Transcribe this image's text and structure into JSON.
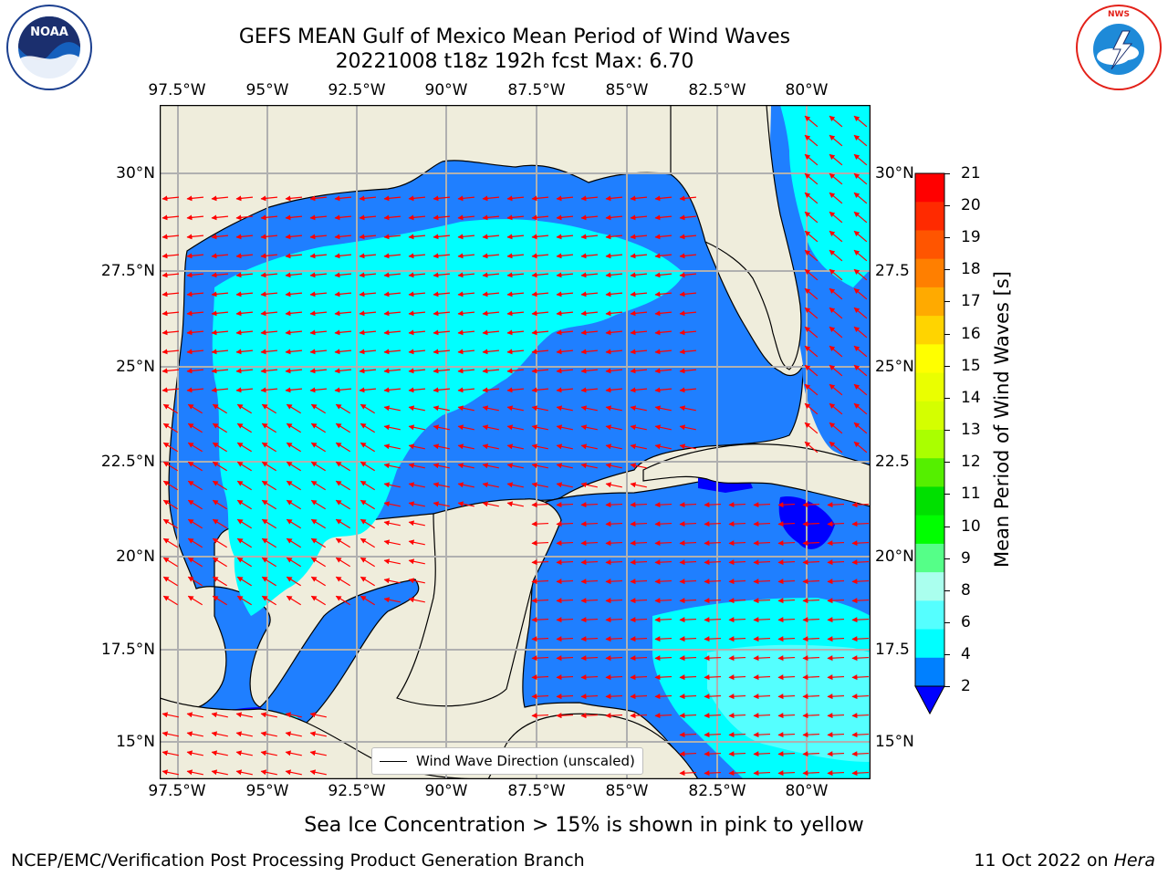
{
  "header": {
    "title_line1": "GEFS MEAN Gulf of Mexico Mean Period of Wind Waves",
    "title_line2": "20221008 t18z 192h fcst   Max: 6.70"
  },
  "logos": {
    "left_text": "NOAA",
    "left_ring_text": "NATIONAL OCEANIC AND ATMOSPHERIC ADMINISTRATION · U.S. DEPARTMENT OF COMMERCE",
    "right_ring_text": "NATIONAL WEATHER SERVICE"
  },
  "map": {
    "lon_ticks": [
      "97.5°W",
      "95°W",
      "92.5°W",
      "90°W",
      "87.5°W",
      "85°W",
      "82.5°W",
      "80°W"
    ],
    "lat_ticks_left": [
      "30°N",
      "27.5°N",
      "25°N",
      "22.5°N",
      "20°N",
      "17.5°N",
      "15°N"
    ],
    "lat_ticks_right": [
      "30°N",
      "27.5",
      "25°N",
      "22.5",
      "20°N",
      "17.5",
      "15°N"
    ],
    "legend_label": "Wind Wave Direction (unscaled)",
    "land_color": "#efeddc",
    "arrow_color": "#ff0000"
  },
  "colorbar": {
    "label": "Mean Period of Wind Waves [s]",
    "ticks": [
      "21",
      "20",
      "19",
      "18",
      "17",
      "16",
      "15",
      "14",
      "13",
      "12",
      "11",
      "10",
      "9",
      "8",
      "6",
      "4",
      "2"
    ],
    "colors_top_to_bottom": [
      "#ff0000",
      "#ff2a00",
      "#ff5500",
      "#ff7f00",
      "#ffaa00",
      "#ffd400",
      "#ffff00",
      "#eaff00",
      "#d4ff00",
      "#aaff00",
      "#55ef00",
      "#00e000",
      "#00ff00",
      "#55ff88",
      "#aaffee",
      "#55ffff",
      "#00ffff",
      "#0080ff",
      "#0000ff"
    ]
  },
  "footer": {
    "sea_ice_note": "Sea Ice Concentration > 15% is shown in pink to yellow",
    "credit_left": "NCEP/EMC/Verification Post Processing Product Generation Branch",
    "credit_right_prefix": "11 Oct 2022 on ",
    "credit_right_host": "Hera"
  }
}
